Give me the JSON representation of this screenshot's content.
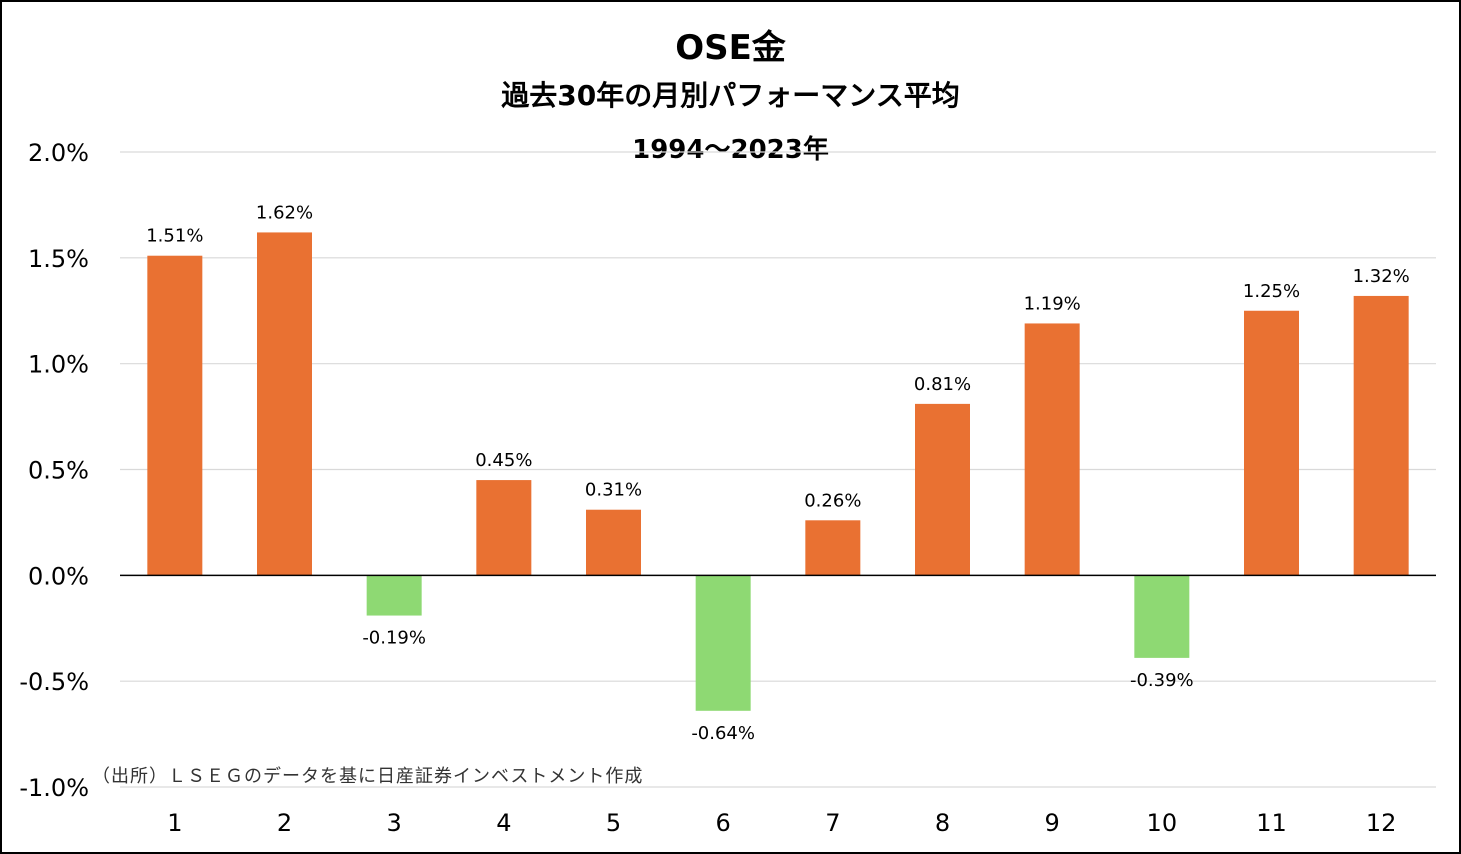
{
  "chart_data": {
    "type": "bar",
    "title": "OSE金",
    "subtitle": "過去30年の月別パフォーマンス平均",
    "period": "1994～2023年",
    "categories": [
      "1",
      "2",
      "3",
      "4",
      "5",
      "6",
      "7",
      "8",
      "9",
      "10",
      "11",
      "12"
    ],
    "values": [
      1.51,
      1.62,
      -0.19,
      0.45,
      0.31,
      -0.64,
      0.26,
      0.81,
      1.19,
      -0.39,
      1.25,
      1.32
    ],
    "data_labels": [
      "1.51%",
      "1.62%",
      "-0.19%",
      "0.45%",
      "0.31%",
      "-0.64%",
      "0.26%",
      "0.81%",
      "1.19%",
      "-0.39%",
      "1.25%",
      "1.32%"
    ],
    "ylim": [
      -1.0,
      2.0
    ],
    "yticks": [
      2.0,
      1.5,
      1.0,
      0.5,
      0.0,
      -0.5,
      -1.0
    ],
    "ytick_labels": [
      "2.0%",
      "1.5%",
      "1.0%",
      "0.5%",
      "0.0%",
      "-0.5%",
      "-1.0%"
    ],
    "grid": true,
    "colors": {
      "positive": "#E97132",
      "negative": "#8ED973",
      "grid": "#D9D9D9",
      "axis": "#000000"
    }
  },
  "source_note": "（出所）ＬＳＥＧのデータを基に日産証券インベストメント作成"
}
